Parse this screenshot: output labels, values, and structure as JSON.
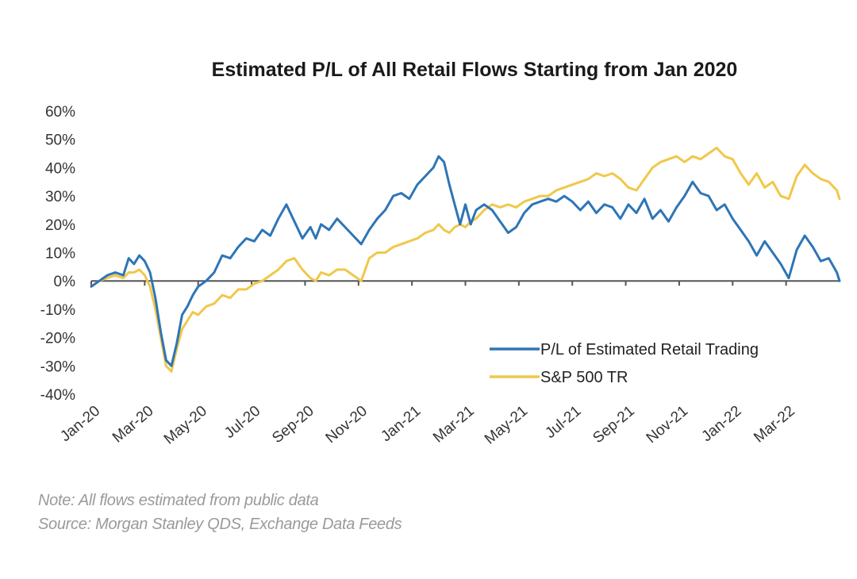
{
  "chart_data": {
    "type": "line",
    "title": "Estimated P/L of All Retail Flows Starting from Jan 2020",
    "xlabel": "",
    "ylabel": "",
    "ylim": [
      -0.4,
      0.6
    ],
    "yticks": [
      0.6,
      0.5,
      0.4,
      0.3,
      0.2,
      0.1,
      0.0,
      -0.1,
      -0.2,
      -0.3,
      -0.4
    ],
    "ytick_labels": [
      "60%",
      "50%",
      "40%",
      "30%",
      "20%",
      "10%",
      "0%",
      "-10%",
      "-20%",
      "-30%",
      "-40%"
    ],
    "xlim_months": [
      0,
      28
    ],
    "xticks_months": [
      0,
      2,
      4,
      6,
      8,
      10,
      12,
      14,
      16,
      18,
      20,
      22,
      24,
      26
    ],
    "xtick_labels": [
      "Jan-20",
      "Mar-20",
      "May-20",
      "Jul-20",
      "Sep-20",
      "Nov-20",
      "Jan-21",
      "Mar-21",
      "May-21",
      "Jul-21",
      "Sep-21",
      "Nov-21",
      "Jan-22",
      "Mar-22"
    ],
    "grid": false,
    "zero_line": true,
    "legend_position": "bottom-right",
    "series": [
      {
        "name": "P/L of Estimated Retail Trading",
        "color": "#2e75b6",
        "x_months": [
          0,
          0.3,
          0.6,
          0.9,
          1.2,
          1.4,
          1.6,
          1.8,
          2.0,
          2.2,
          2.4,
          2.6,
          2.8,
          3.0,
          3.2,
          3.4,
          3.6,
          3.8,
          4.0,
          4.3,
          4.6,
          4.9,
          5.2,
          5.5,
          5.8,
          6.1,
          6.4,
          6.7,
          7.0,
          7.3,
          7.6,
          7.9,
          8.2,
          8.4,
          8.6,
          8.9,
          9.2,
          9.5,
          9.8,
          10.1,
          10.4,
          10.7,
          11.0,
          11.3,
          11.6,
          11.9,
          12.2,
          12.5,
          12.8,
          13.0,
          13.2,
          13.4,
          13.6,
          13.8,
          14.0,
          14.2,
          14.4,
          14.7,
          15.0,
          15.3,
          15.6,
          15.9,
          16.2,
          16.5,
          16.8,
          17.1,
          17.4,
          17.7,
          18.0,
          18.3,
          18.6,
          18.9,
          19.2,
          19.5,
          19.8,
          20.1,
          20.4,
          20.7,
          21.0,
          21.3,
          21.6,
          21.9,
          22.2,
          22.5,
          22.8,
          23.1,
          23.4,
          23.7,
          24.0,
          24.3,
          24.6,
          24.9,
          25.2,
          25.5,
          25.8,
          26.1,
          26.4,
          26.7,
          27.0,
          27.3,
          27.6,
          27.9,
          28.0
        ],
        "values": [
          -0.02,
          0.0,
          0.02,
          0.03,
          0.02,
          0.08,
          0.06,
          0.09,
          0.07,
          0.03,
          -0.06,
          -0.18,
          -0.28,
          -0.3,
          -0.22,
          -0.12,
          -0.09,
          -0.05,
          -0.02,
          0.0,
          0.03,
          0.09,
          0.08,
          0.12,
          0.15,
          0.14,
          0.18,
          0.16,
          0.22,
          0.27,
          0.21,
          0.15,
          0.19,
          0.15,
          0.2,
          0.18,
          0.22,
          0.19,
          0.16,
          0.13,
          0.18,
          0.22,
          0.25,
          0.3,
          0.31,
          0.29,
          0.34,
          0.37,
          0.4,
          0.44,
          0.42,
          0.34,
          0.27,
          0.2,
          0.27,
          0.2,
          0.25,
          0.27,
          0.25,
          0.21,
          0.17,
          0.19,
          0.24,
          0.27,
          0.28,
          0.29,
          0.28,
          0.3,
          0.28,
          0.25,
          0.28,
          0.24,
          0.27,
          0.26,
          0.22,
          0.27,
          0.24,
          0.29,
          0.22,
          0.25,
          0.21,
          0.26,
          0.3,
          0.35,
          0.31,
          0.3,
          0.25,
          0.27,
          0.22,
          0.18,
          0.14,
          0.09,
          0.14,
          0.1,
          0.06,
          0.01,
          0.11,
          0.16,
          0.12,
          0.07,
          0.08,
          0.03,
          0.0
        ]
      },
      {
        "name": "S&P 500 TR",
        "color": "#f0c84a",
        "x_months": [
          0,
          0.3,
          0.6,
          0.9,
          1.2,
          1.4,
          1.6,
          1.8,
          2.0,
          2.2,
          2.4,
          2.6,
          2.8,
          3.0,
          3.2,
          3.4,
          3.6,
          3.8,
          4.0,
          4.3,
          4.6,
          4.9,
          5.2,
          5.5,
          5.8,
          6.1,
          6.4,
          6.7,
          7.0,
          7.3,
          7.6,
          7.9,
          8.2,
          8.4,
          8.6,
          8.9,
          9.2,
          9.5,
          9.8,
          10.1,
          10.4,
          10.7,
          11.0,
          11.3,
          11.6,
          11.9,
          12.2,
          12.5,
          12.8,
          13.0,
          13.2,
          13.4,
          13.6,
          13.8,
          14.0,
          14.2,
          14.4,
          14.7,
          15.0,
          15.3,
          15.6,
          15.9,
          16.2,
          16.5,
          16.8,
          17.1,
          17.4,
          17.7,
          18.0,
          18.3,
          18.6,
          18.9,
          19.2,
          19.5,
          19.8,
          20.1,
          20.4,
          20.7,
          21.0,
          21.3,
          21.6,
          21.9,
          22.2,
          22.5,
          22.8,
          23.1,
          23.4,
          23.7,
          24.0,
          24.3,
          24.6,
          24.9,
          25.2,
          25.5,
          25.8,
          26.1,
          26.4,
          26.7,
          27.0,
          27.3,
          27.6,
          27.9,
          28.0
        ],
        "values": [
          -0.02,
          0.0,
          0.01,
          0.02,
          0.01,
          0.03,
          0.03,
          0.04,
          0.02,
          -0.02,
          -0.1,
          -0.2,
          -0.3,
          -0.32,
          -0.24,
          -0.17,
          -0.14,
          -0.11,
          -0.12,
          -0.09,
          -0.08,
          -0.05,
          -0.06,
          -0.03,
          -0.03,
          -0.01,
          0.0,
          0.02,
          0.04,
          0.07,
          0.08,
          0.04,
          0.01,
          0.0,
          0.03,
          0.02,
          0.04,
          0.04,
          0.02,
          0.0,
          0.08,
          0.1,
          0.1,
          0.12,
          0.13,
          0.14,
          0.15,
          0.17,
          0.18,
          0.2,
          0.18,
          0.17,
          0.19,
          0.2,
          0.19,
          0.21,
          0.22,
          0.25,
          0.27,
          0.26,
          0.27,
          0.26,
          0.28,
          0.29,
          0.3,
          0.3,
          0.32,
          0.33,
          0.34,
          0.35,
          0.36,
          0.38,
          0.37,
          0.38,
          0.36,
          0.33,
          0.32,
          0.36,
          0.4,
          0.42,
          0.43,
          0.44,
          0.42,
          0.44,
          0.43,
          0.45,
          0.47,
          0.44,
          0.43,
          0.38,
          0.34,
          0.38,
          0.33,
          0.35,
          0.3,
          0.29,
          0.37,
          0.41,
          0.38,
          0.36,
          0.35,
          0.32,
          0.29
        ]
      }
    ],
    "notes": [
      "Note:  All flows estimated from public data",
      "Source: Morgan Stanley QDS, Exchange Data Feeds"
    ]
  }
}
